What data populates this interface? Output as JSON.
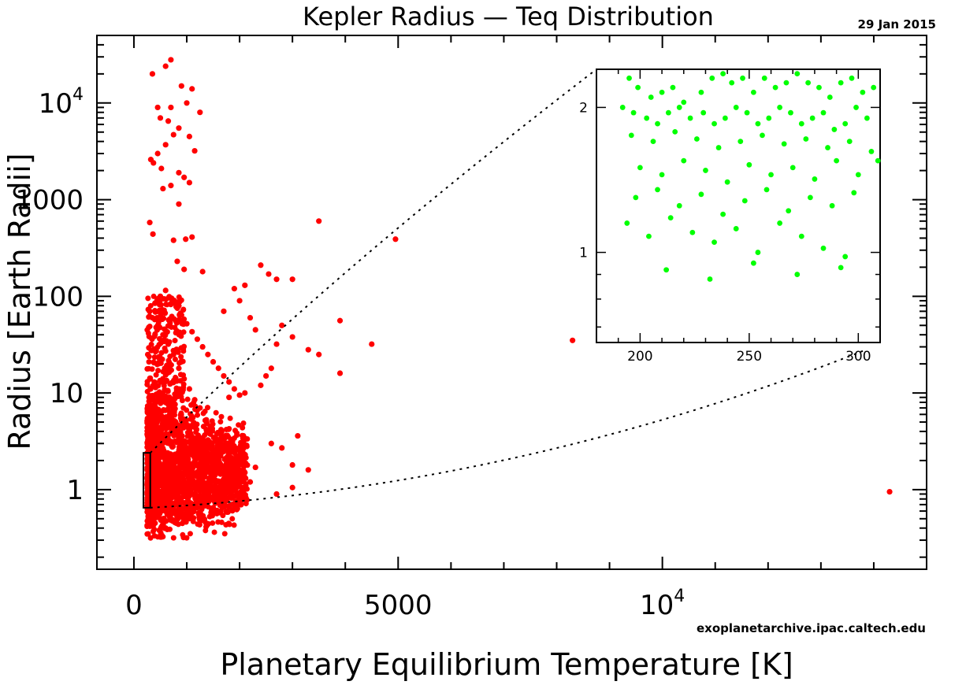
{
  "chart_data": {
    "type": "scatter",
    "title": "Kepler Radius — Teq Distribution",
    "date_label": "29 Jan 2015",
    "credit": "exoplanetarchive.ipac.caltech.edu",
    "xlabel": "Planetary Equilibrium Temperature [K]",
    "ylabel": "Radius [Earth Radii]",
    "yscale": "log",
    "xlim": [
      -700,
      15000
    ],
    "ylim": [
      0.15,
      50000
    ],
    "x_ticks": [
      {
        "value": 0,
        "label": "0",
        "sup": ""
      },
      {
        "value": 5000,
        "label": "5000",
        "sup": ""
      },
      {
        "value": 10000,
        "label": "10",
        "sup": "4"
      }
    ],
    "y_ticks": [
      {
        "value": 1,
        "label": "1",
        "sup": ""
      },
      {
        "value": 10,
        "label": "10",
        "sup": ""
      },
      {
        "value": 100,
        "label": "100",
        "sup": ""
      },
      {
        "value": 1000,
        "label": "1000",
        "sup": ""
      },
      {
        "value": 10000,
        "label": "10",
        "sup": "4"
      }
    ],
    "grid": false,
    "legend": "none",
    "colors": {
      "main_points": "#ff0000",
      "inset_points": "#00ff00",
      "frame": "#000000"
    },
    "main_points": [
      [
        350,
        20000
      ],
      [
        600,
        24000
      ],
      [
        700,
        28000
      ],
      [
        900,
        15000
      ],
      [
        1100,
        14000
      ],
      [
        1250,
        8000
      ],
      [
        1000,
        10000
      ],
      [
        700,
        9000
      ],
      [
        450,
        9000
      ],
      [
        500,
        7000
      ],
      [
        650,
        6500
      ],
      [
        850,
        5500
      ],
      [
        1050,
        4500
      ],
      [
        1150,
        3200
      ],
      [
        750,
        4700
      ],
      [
        600,
        3700
      ],
      [
        450,
        3000
      ],
      [
        320,
        2600
      ],
      [
        370,
        2400
      ],
      [
        520,
        2100
      ],
      [
        850,
        1900
      ],
      [
        950,
        1700
      ],
      [
        1050,
        1500
      ],
      [
        700,
        1400
      ],
      [
        550,
        1300
      ],
      [
        850,
        900
      ],
      [
        300,
        580
      ],
      [
        360,
        440
      ],
      [
        750,
        380
      ],
      [
        980,
        390
      ],
      [
        1100,
        410
      ],
      [
        3500,
        600
      ],
      [
        4950,
        390
      ],
      [
        820,
        230
      ],
      [
        950,
        190
      ],
      [
        1300,
        180
      ],
      [
        2400,
        210
      ],
      [
        2550,
        170
      ],
      [
        2700,
        150
      ],
      [
        3000,
        150
      ],
      [
        2100,
        130
      ],
      [
        1900,
        120
      ],
      [
        2000,
        90
      ],
      [
        1700,
        70
      ],
      [
        2200,
        60
      ],
      [
        2300,
        45
      ],
      [
        2800,
        50
      ],
      [
        3000,
        38
      ],
      [
        2700,
        32
      ],
      [
        3300,
        28
      ],
      [
        3500,
        25
      ],
      [
        3900,
        56
      ],
      [
        4500,
        32
      ],
      [
        8300,
        35
      ],
      [
        2600,
        18
      ],
      [
        2500,
        15
      ],
      [
        3900,
        16
      ],
      [
        2400,
        12
      ],
      [
        2100,
        10
      ],
      [
        1800,
        9
      ],
      [
        2600,
        3
      ],
      [
        2800,
        2.7
      ],
      [
        3100,
        3.6
      ],
      [
        3300,
        1.6
      ],
      [
        2700,
        0.9
      ],
      [
        3000,
        1.8
      ],
      [
        3000,
        1.05
      ],
      [
        14300,
        0.95
      ],
      [
        400,
        0.45
      ],
      [
        480,
        0.38
      ],
      [
        520,
        0.34
      ],
      [
        600,
        0.4
      ],
      [
        650,
        0.55
      ],
      [
        700,
        0.5
      ],
      [
        800,
        0.45
      ],
      [
        900,
        0.6
      ],
      [
        1000,
        0.7
      ],
      [
        1100,
        0.58
      ],
      [
        1200,
        0.65
      ],
      [
        1300,
        0.75
      ],
      [
        1400,
        0.8
      ],
      [
        1500,
        0.65
      ],
      [
        1600,
        0.9
      ],
      [
        1700,
        1.0
      ],
      [
        1800,
        1.1
      ],
      [
        1900,
        1.3
      ],
      [
        2000,
        1.25
      ],
      [
        2100,
        1.5
      ],
      [
        2200,
        1.2
      ],
      [
        2300,
        1.7
      ],
      [
        1750,
        2.1
      ],
      [
        1650,
        2.6
      ],
      [
        1550,
        3.4
      ],
      [
        1450,
        4.1
      ],
      [
        1350,
        5.2
      ],
      [
        1250,
        7.0
      ],
      [
        1150,
        8.5
      ],
      [
        1050,
        11
      ],
      [
        950,
        14
      ],
      [
        850,
        18
      ],
      [
        750,
        25
      ],
      [
        650,
        32
      ],
      [
        550,
        40
      ],
      [
        450,
        50
      ],
      [
        350,
        60
      ],
      [
        300,
        70
      ],
      [
        400,
        85
      ],
      [
        500,
        100
      ],
      [
        600,
        115
      ],
      [
        700,
        95
      ],
      [
        800,
        78
      ],
      [
        900,
        64
      ],
      [
        1000,
        52
      ],
      [
        1100,
        43
      ],
      [
        1200,
        36
      ],
      [
        1300,
        30
      ],
      [
        1400,
        25
      ],
      [
        1500,
        21
      ],
      [
        1600,
        18
      ],
      [
        1700,
        15
      ],
      [
        1800,
        13
      ],
      [
        1900,
        11
      ],
      [
        2000,
        9.5
      ]
    ],
    "inset": {
      "xlim": [
        180,
        310
      ],
      "ylim": [
        0.65,
        2.4
      ],
      "yscale": "log",
      "x_ticks": [
        200,
        250,
        300
      ],
      "y_ticks": [
        1,
        2
      ],
      "zoom_box": {
        "x": [
          180,
          310
        ],
        "y": [
          0.65,
          2.4
        ]
      },
      "points": [
        [
          195,
          2.3
        ],
        [
          199,
          2.2
        ],
        [
          205,
          2.1
        ],
        [
          210,
          2.15
        ],
        [
          215,
          2.2
        ],
        [
          220,
          2.05
        ],
        [
          228,
          2.15
        ],
        [
          233,
          2.3
        ],
        [
          238,
          2.35
        ],
        [
          242,
          2.25
        ],
        [
          247,
          2.3
        ],
        [
          252,
          2.15
        ],
        [
          257,
          2.3
        ],
        [
          262,
          2.2
        ],
        [
          267,
          2.25
        ],
        [
          272,
          2.35
        ],
        [
          277,
          2.25
        ],
        [
          282,
          2.2
        ],
        [
          287,
          2.1
        ],
        [
          292,
          2.25
        ],
        [
          297,
          2.3
        ],
        [
          302,
          2.15
        ],
        [
          307,
          2.2
        ],
        [
          192,
          2.0
        ],
        [
          197,
          1.95
        ],
        [
          203,
          1.9
        ],
        [
          208,
          1.85
        ],
        [
          213,
          1.95
        ],
        [
          218,
          2.0
        ],
        [
          223,
          1.9
        ],
        [
          229,
          1.95
        ],
        [
          234,
          1.85
        ],
        [
          239,
          1.9
        ],
        [
          244,
          2.0
        ],
        [
          249,
          1.95
        ],
        [
          254,
          1.85
        ],
        [
          259,
          1.9
        ],
        [
          264,
          2.0
        ],
        [
          269,
          1.95
        ],
        [
          274,
          1.85
        ],
        [
          279,
          1.9
        ],
        [
          284,
          1.95
        ],
        [
          289,
          1.8
        ],
        [
          294,
          1.85
        ],
        [
          299,
          2.0
        ],
        [
          304,
          1.9
        ],
        [
          196,
          1.75
        ],
        [
          206,
          1.7
        ],
        [
          216,
          1.78
        ],
        [
          226,
          1.72
        ],
        [
          236,
          1.65
        ],
        [
          246,
          1.7
        ],
        [
          256,
          1.75
        ],
        [
          266,
          1.68
        ],
        [
          276,
          1.72
        ],
        [
          286,
          1.65
        ],
        [
          296,
          1.7
        ],
        [
          306,
          1.62
        ],
        [
          200,
          1.5
        ],
        [
          210,
          1.45
        ],
        [
          220,
          1.55
        ],
        [
          230,
          1.48
        ],
        [
          240,
          1.4
        ],
        [
          250,
          1.52
        ],
        [
          260,
          1.45
        ],
        [
          270,
          1.5
        ],
        [
          280,
          1.42
        ],
        [
          290,
          1.55
        ],
        [
          300,
          1.45
        ],
        [
          309,
          1.55
        ],
        [
          198,
          1.3
        ],
        [
          208,
          1.35
        ],
        [
          218,
          1.25
        ],
        [
          228,
          1.32
        ],
        [
          238,
          1.2
        ],
        [
          248,
          1.28
        ],
        [
          258,
          1.35
        ],
        [
          268,
          1.22
        ],
        [
          278,
          1.3
        ],
        [
          288,
          1.25
        ],
        [
          298,
          1.33
        ],
        [
          194,
          1.15
        ],
        [
          204,
          1.08
        ],
        [
          214,
          1.18
        ],
        [
          224,
          1.1
        ],
        [
          234,
          1.05
        ],
        [
          244,
          1.12
        ],
        [
          254,
          1.0
        ],
        [
          264,
          1.15
        ],
        [
          274,
          1.08
        ],
        [
          284,
          1.02
        ],
        [
          294,
          0.98
        ],
        [
          212,
          0.92
        ],
        [
          232,
          0.88
        ],
        [
          252,
          0.95
        ],
        [
          272,
          0.9
        ],
        [
          292,
          0.93
        ]
      ]
    }
  }
}
